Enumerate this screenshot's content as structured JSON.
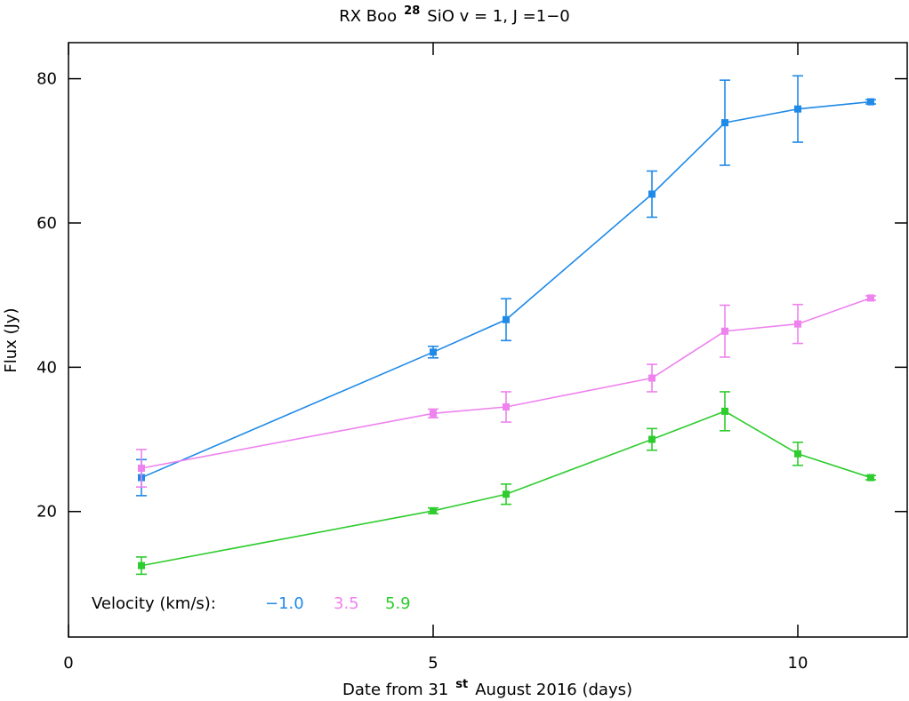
{
  "chart_data": {
    "type": "line",
    "title": {
      "main": "RX Boo",
      "sup": "28",
      "rest": "SiO v = 1, J =1−0"
    },
    "x_label": {
      "main": "Date from 31",
      "sup": "st",
      "rest": "August 2016 (days)"
    },
    "y_label": "Flux (Jy)",
    "legend_title": "Velocity (km/s):",
    "x": [
      1,
      5,
      6,
      8,
      9,
      10,
      11
    ],
    "series": [
      {
        "name": "−1.0",
        "color": "#1f8ae8",
        "values": [
          24.7,
          42.1,
          46.6,
          64.0,
          73.9,
          75.8,
          76.8
        ],
        "errors": [
          2.5,
          0.8,
          2.9,
          3.2,
          5.9,
          4.6,
          0.3
        ]
      },
      {
        "name": "3.5",
        "color": "#ee82ee",
        "values": [
          26.0,
          33.6,
          34.5,
          38.5,
          45.0,
          46.0,
          49.6
        ],
        "errors": [
          2.6,
          0.6,
          2.1,
          1.9,
          3.6,
          2.7,
          0.3
        ]
      },
      {
        "name": "5.9",
        "color": "#2ecc2e",
        "values": [
          12.5,
          20.1,
          22.4,
          30.0,
          33.9,
          28.0,
          24.7
        ],
        "errors": [
          1.2,
          0.4,
          1.4,
          1.5,
          2.7,
          1.6,
          0.3
        ]
      }
    ],
    "xlim": [
      0,
      11.5
    ],
    "xticks": [
      0,
      5,
      10
    ],
    "ylim": [
      2.6,
      85
    ],
    "yticks": [
      20,
      40,
      60,
      80
    ]
  }
}
